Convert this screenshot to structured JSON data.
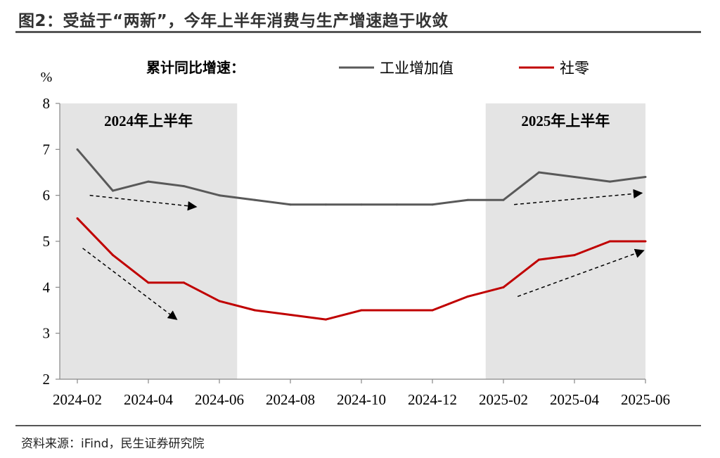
{
  "title": "图2：受益于“两新”，今年上半年消费与生产增速趋于收敛",
  "source": "资料来源：iFind，民生证券研究院",
  "chart_data": {
    "type": "line",
    "legend_title": "累计同比增速：",
    "ylabel": "%",
    "ylim": [
      2,
      8
    ],
    "yticks": [
      "2",
      "3",
      "4",
      "5",
      "6",
      "7",
      "8"
    ],
    "xticks": [
      "2024-02",
      "2024-04",
      "2024-06",
      "2024-08",
      "2024-10",
      "2024-12",
      "2025-02",
      "2025-04",
      "2025-06"
    ],
    "x": [
      "2024-02",
      "2024-03",
      "2024-04",
      "2024-05",
      "2024-06",
      "2024-07",
      "2024-08",
      "2024-09",
      "2024-10",
      "2024-11",
      "2024-12",
      "2025-01",
      "2025-02",
      "2025-03",
      "2025-04",
      "2025-05",
      "2025-06"
    ],
    "series": [
      {
        "name": "工业增加值",
        "color": "#595959",
        "values": [
          7.0,
          6.1,
          6.3,
          6.2,
          6.0,
          5.9,
          5.8,
          5.8,
          5.8,
          5.8,
          5.8,
          5.9,
          5.9,
          6.5,
          6.4,
          6.3,
          6.4
        ]
      },
      {
        "name": "社零",
        "color": "#c00000",
        "values": [
          5.5,
          4.7,
          4.1,
          4.1,
          3.7,
          3.5,
          3.4,
          3.3,
          3.5,
          3.5,
          3.5,
          3.8,
          4.0,
          4.6,
          4.7,
          5.0,
          5.0
        ]
      }
    ],
    "shaded_periods": [
      {
        "label": "2024年上半年",
        "from": "2024-02",
        "to": "2024-06"
      },
      {
        "label": "2025年上半年",
        "from": "2025-02",
        "to": "2025-06"
      }
    ],
    "annotations": "dashed trend arrows: 工业增加值 and 社零 both trend downward in 2024H1 and upward in 2025H1",
    "grid": false,
    "legend_position": "top"
  }
}
